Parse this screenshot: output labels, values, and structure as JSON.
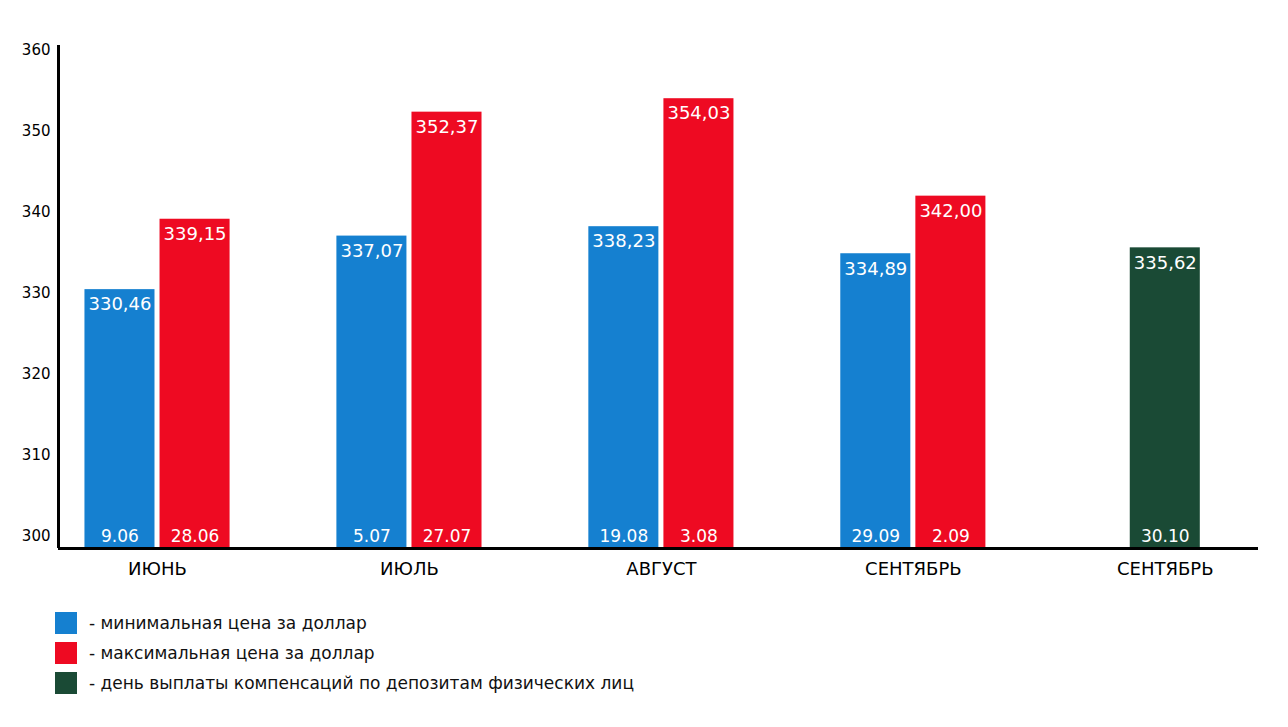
{
  "chart_data": {
    "type": "bar",
    "categories": [
      "ИЮНЬ",
      "ИЮЛЬ",
      "АВГУСТ",
      "СЕНТЯБРЬ",
      "СЕНТЯБРЬ"
    ],
    "series": [
      {
        "name": "- минимальная цена за доллар",
        "color": "#1580d0",
        "values": [
          330.46,
          337.07,
          338.23,
          334.89,
          null
        ],
        "value_labels": [
          "330,46",
          "337,07",
          "338,23",
          "334,89",
          null
        ],
        "dates": [
          "9.06",
          "5.07",
          "19.08",
          "29.09",
          null
        ]
      },
      {
        "name": "- максимальная цена за доллар",
        "color": "#ee0a22",
        "values": [
          339.15,
          352.37,
          354.03,
          342.0,
          null
        ],
        "value_labels": [
          "339,15",
          "352,37",
          "354,03",
          "342,00",
          null
        ],
        "dates": [
          "28.06",
          "27.07",
          "3.08",
          "2.09",
          null
        ]
      },
      {
        "name": "- день выплаты компенсаций по депозитам физических лиц",
        "color": "#1a4a35",
        "values": [
          null,
          null,
          null,
          null,
          335.62
        ],
        "value_labels": [
          null,
          null,
          null,
          null,
          "335,62"
        ],
        "dates": [
          null,
          null,
          null,
          null,
          "30.10"
        ]
      }
    ],
    "ylim": [
      298.5,
      360.6
    ],
    "yticks": [
      300,
      310,
      320,
      330,
      340,
      350,
      360
    ],
    "grid": false,
    "data_labels": true,
    "legend": "bottom-left"
  }
}
